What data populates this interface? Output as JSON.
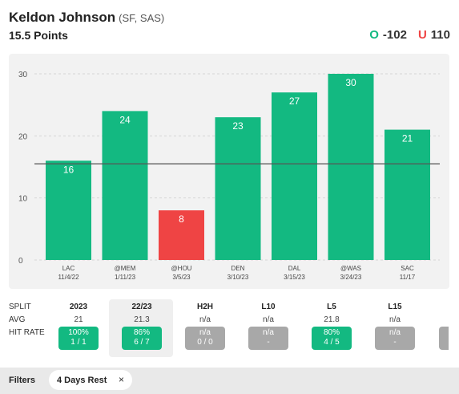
{
  "header": {
    "player_name": "Keldon Johnson",
    "team": "(SF, SAS)",
    "prop_line": "15.5 Points",
    "over_letter": "O",
    "over_odds": "-102",
    "under_letter": "U",
    "under_odds": "110",
    "over_color": "#13b981",
    "under_color": "#ef4444"
  },
  "chart_data": {
    "type": "bar",
    "categories": [
      "LAC",
      "@MEM",
      "@HOU",
      "DEN",
      "DAL",
      "@WAS",
      "SAC"
    ],
    "dates": [
      "11/4/22",
      "1/11/23",
      "3/5/23",
      "3/10/23",
      "3/15/23",
      "3/24/23",
      "11/17"
    ],
    "values": [
      16,
      24,
      8,
      23,
      27,
      30,
      21
    ],
    "threshold": 15.5,
    "ylim": [
      0,
      30
    ],
    "yticks": [
      0,
      10,
      20,
      30
    ],
    "grid": true,
    "colors": {
      "over": "#13b981",
      "under": "#ef4444",
      "line": "#555555"
    }
  },
  "splits": {
    "row_labels": [
      "SPLIT",
      "AVG",
      "HIT RATE"
    ],
    "columns": [
      {
        "label": "2023",
        "avg": "21",
        "hit_pct": "100%",
        "hit_frac": "1 / 1",
        "status": "green"
      },
      {
        "label": "22/23",
        "avg": "21.3",
        "hit_pct": "86%",
        "hit_frac": "6 / 7",
        "status": "green",
        "selected": true
      },
      {
        "label": "H2H",
        "avg": "n/a",
        "hit_pct": "n/a",
        "hit_frac": "0 / 0",
        "status": "gray"
      },
      {
        "label": "L10",
        "avg": "n/a",
        "hit_pct": "n/a",
        "hit_frac": "-",
        "status": "gray"
      },
      {
        "label": "L5",
        "avg": "21.8",
        "hit_pct": "80%",
        "hit_frac": "4 / 5",
        "status": "green"
      },
      {
        "label": "L15",
        "avg": "n/a",
        "hit_pct": "n/a",
        "hit_frac": "-",
        "status": "gray"
      }
    ]
  },
  "filters": {
    "label": "Filters",
    "chips": [
      {
        "label": "4 Days Rest",
        "close": "×"
      }
    ]
  }
}
